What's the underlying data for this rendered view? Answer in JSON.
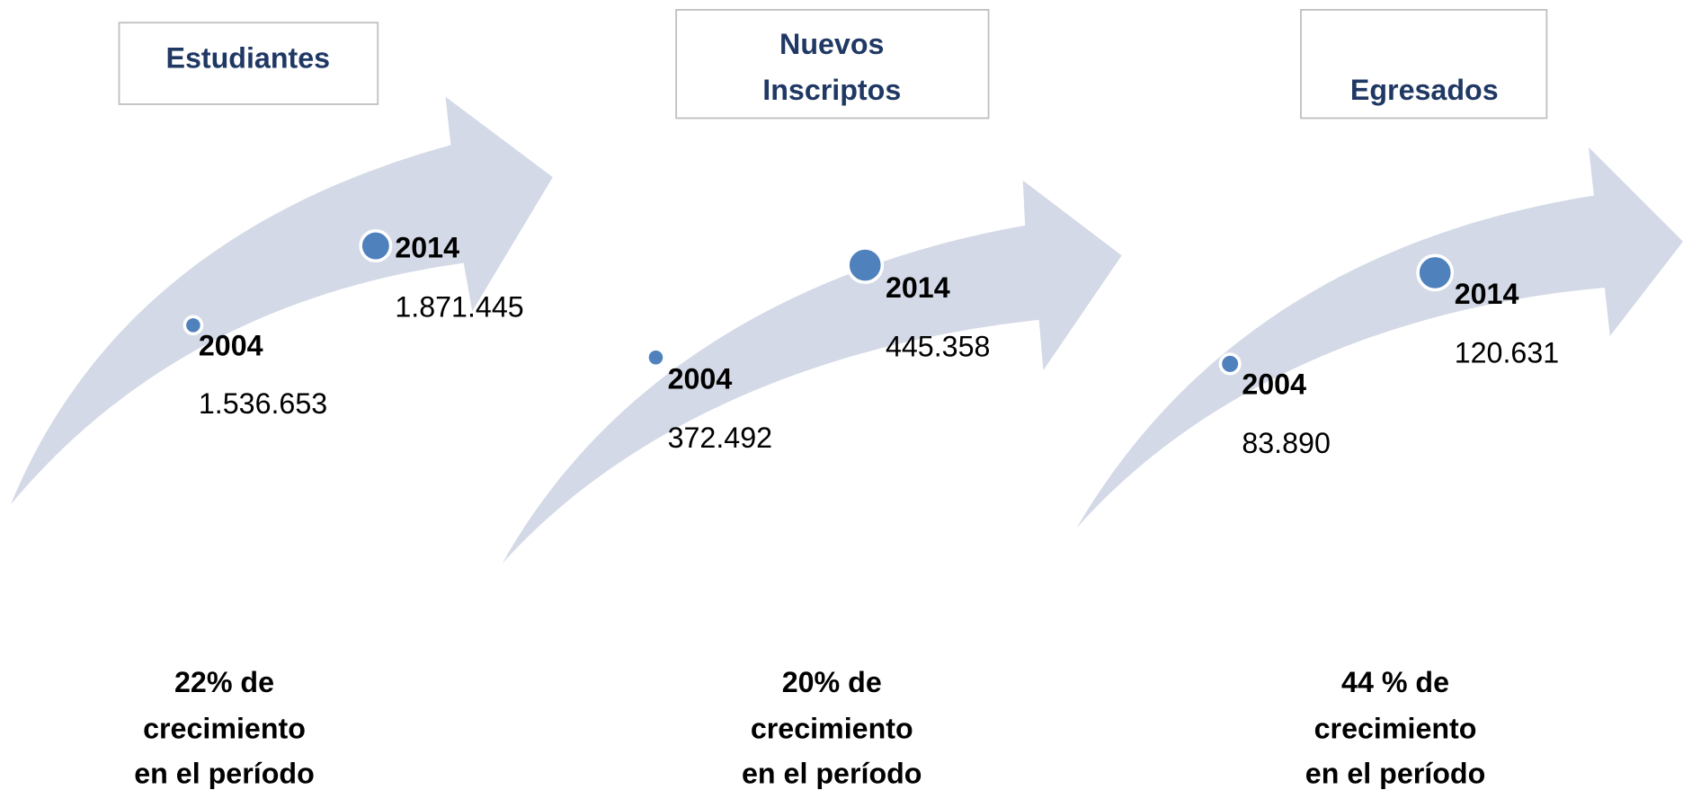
{
  "panels": [
    {
      "title": [
        "Estudiantes"
      ],
      "points": [
        {
          "year": "2004",
          "value": "1.536.653"
        },
        {
          "year": "2014",
          "value": "1.871.445"
        }
      ],
      "growth": [
        "22% de",
        "crecimiento",
        "en el período"
      ]
    },
    {
      "title": [
        "Nuevos",
        "Inscriptos"
      ],
      "points": [
        {
          "year": "2004",
          "value": "372.492"
        },
        {
          "year": "2014",
          "value": "445.358"
        }
      ],
      "growth": [
        "20% de",
        "crecimiento",
        "en el período"
      ]
    },
    {
      "title": [
        "Egresados"
      ],
      "points": [
        {
          "year": "2004",
          "value": "83.890"
        },
        {
          "year": "2014",
          "value": "120.631"
        }
      ],
      "growth": [
        "44 % de",
        "crecimiento",
        "en el período"
      ]
    }
  ]
}
